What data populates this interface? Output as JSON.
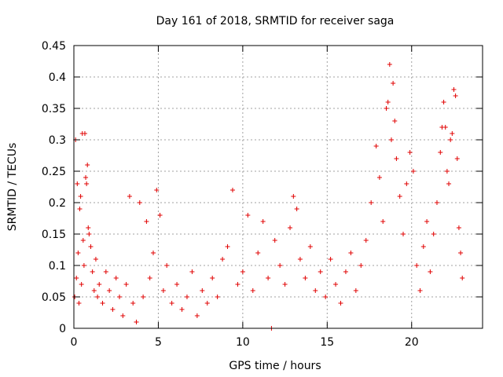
{
  "chart_data": {
    "type": "scatter",
    "title": "Day 161 of 2018, SRMTID for receiver saga",
    "xlabel": "GPS time / hours",
    "ylabel": "SRMTID / TECUs",
    "xlim": [
      0,
      24.2
    ],
    "ylim": [
      0,
      0.45
    ],
    "xticks": [
      0,
      5,
      10,
      15,
      20
    ],
    "yticks": [
      0,
      0.05,
      0.1,
      0.15,
      0.2,
      0.25,
      0.3,
      0.35,
      0.4,
      0.45
    ],
    "xtick_labels": [
      "0",
      "5",
      "10",
      "15",
      "20"
    ],
    "ytick_labels": [
      "0",
      "0.05",
      "0.1",
      "0.15",
      "0.2",
      "0.25",
      "0.3",
      "0.35",
      "0.4",
      "0.45"
    ],
    "grid": true,
    "marker": "+",
    "color": "#e00000",
    "series": [
      {
        "name": "SRMTID",
        "points": [
          [
            0.05,
            0.05
          ],
          [
            0.1,
            0.3
          ],
          [
            0.15,
            0.08
          ],
          [
            0.2,
            0.23
          ],
          [
            0.25,
            0.12
          ],
          [
            0.3,
            0.04
          ],
          [
            0.35,
            0.19
          ],
          [
            0.4,
            0.21
          ],
          [
            0.45,
            0.07
          ],
          [
            0.5,
            0.31
          ],
          [
            0.55,
            0.14
          ],
          [
            0.6,
            0.1
          ],
          [
            0.65,
            0.31
          ],
          [
            0.7,
            0.24
          ],
          [
            0.75,
            0.23
          ],
          [
            0.8,
            0.26
          ],
          [
            0.85,
            0.16
          ],
          [
            0.9,
            0.15
          ],
          [
            1.0,
            0.13
          ],
          [
            1.1,
            0.09
          ],
          [
            1.2,
            0.06
          ],
          [
            1.3,
            0.11
          ],
          [
            1.4,
            0.05
          ],
          [
            1.5,
            0.07
          ],
          [
            1.7,
            0.04
          ],
          [
            1.9,
            0.09
          ],
          [
            2.1,
            0.06
          ],
          [
            2.3,
            0.03
          ],
          [
            2.5,
            0.08
          ],
          [
            2.7,
            0.05
          ],
          [
            2.9,
            0.02
          ],
          [
            3.1,
            0.07
          ],
          [
            3.3,
            0.21
          ],
          [
            3.5,
            0.04
          ],
          [
            3.7,
            0.01
          ],
          [
            3.9,
            0.2
          ],
          [
            4.1,
            0.05
          ],
          [
            4.3,
            0.17
          ],
          [
            4.5,
            0.08
          ],
          [
            4.7,
            0.12
          ],
          [
            4.9,
            0.22
          ],
          [
            5.1,
            0.18
          ],
          [
            5.3,
            0.06
          ],
          [
            5.5,
            0.1
          ],
          [
            5.8,
            0.04
          ],
          [
            6.1,
            0.07
          ],
          [
            6.4,
            0.03
          ],
          [
            6.7,
            0.05
          ],
          [
            7.0,
            0.09
          ],
          [
            7.3,
            0.02
          ],
          [
            7.6,
            0.06
          ],
          [
            7.9,
            0.04
          ],
          [
            8.2,
            0.08
          ],
          [
            8.5,
            0.05
          ],
          [
            8.8,
            0.11
          ],
          [
            9.1,
            0.13
          ],
          [
            9.4,
            0.22
          ],
          [
            9.7,
            0.07
          ],
          [
            10.0,
            0.09
          ],
          [
            10.3,
            0.18
          ],
          [
            10.6,
            0.06
          ],
          [
            10.9,
            0.12
          ],
          [
            11.2,
            0.17
          ],
          [
            11.5,
            0.08
          ],
          [
            11.7,
            0.0
          ],
          [
            11.9,
            0.14
          ],
          [
            12.2,
            0.1
          ],
          [
            12.5,
            0.07
          ],
          [
            12.8,
            0.16
          ],
          [
            13.0,
            0.21
          ],
          [
            13.2,
            0.19
          ],
          [
            13.4,
            0.11
          ],
          [
            13.7,
            0.08
          ],
          [
            14.0,
            0.13
          ],
          [
            14.3,
            0.06
          ],
          [
            14.6,
            0.09
          ],
          [
            14.9,
            0.05
          ],
          [
            15.2,
            0.11
          ],
          [
            15.5,
            0.07
          ],
          [
            15.8,
            0.04
          ],
          [
            16.1,
            0.09
          ],
          [
            16.4,
            0.12
          ],
          [
            16.7,
            0.06
          ],
          [
            17.0,
            0.1
          ],
          [
            17.3,
            0.14
          ],
          [
            17.6,
            0.2
          ],
          [
            17.9,
            0.29
          ],
          [
            18.1,
            0.24
          ],
          [
            18.3,
            0.17
          ],
          [
            18.5,
            0.35
          ],
          [
            18.6,
            0.36
          ],
          [
            18.7,
            0.42
          ],
          [
            18.8,
            0.3
          ],
          [
            18.9,
            0.39
          ],
          [
            19.0,
            0.33
          ],
          [
            19.1,
            0.27
          ],
          [
            19.3,
            0.21
          ],
          [
            19.5,
            0.15
          ],
          [
            19.7,
            0.23
          ],
          [
            19.9,
            0.28
          ],
          [
            20.1,
            0.25
          ],
          [
            20.3,
            0.1
          ],
          [
            20.5,
            0.06
          ],
          [
            20.7,
            0.13
          ],
          [
            20.9,
            0.17
          ],
          [
            21.1,
            0.09
          ],
          [
            21.3,
            0.15
          ],
          [
            21.5,
            0.2
          ],
          [
            21.7,
            0.28
          ],
          [
            21.8,
            0.32
          ],
          [
            21.9,
            0.36
          ],
          [
            22.0,
            0.32
          ],
          [
            22.1,
            0.25
          ],
          [
            22.2,
            0.23
          ],
          [
            22.3,
            0.3
          ],
          [
            22.4,
            0.31
          ],
          [
            22.5,
            0.38
          ],
          [
            22.6,
            0.37
          ],
          [
            22.7,
            0.27
          ],
          [
            22.8,
            0.16
          ],
          [
            22.9,
            0.12
          ],
          [
            23.0,
            0.08
          ]
        ]
      }
    ]
  }
}
